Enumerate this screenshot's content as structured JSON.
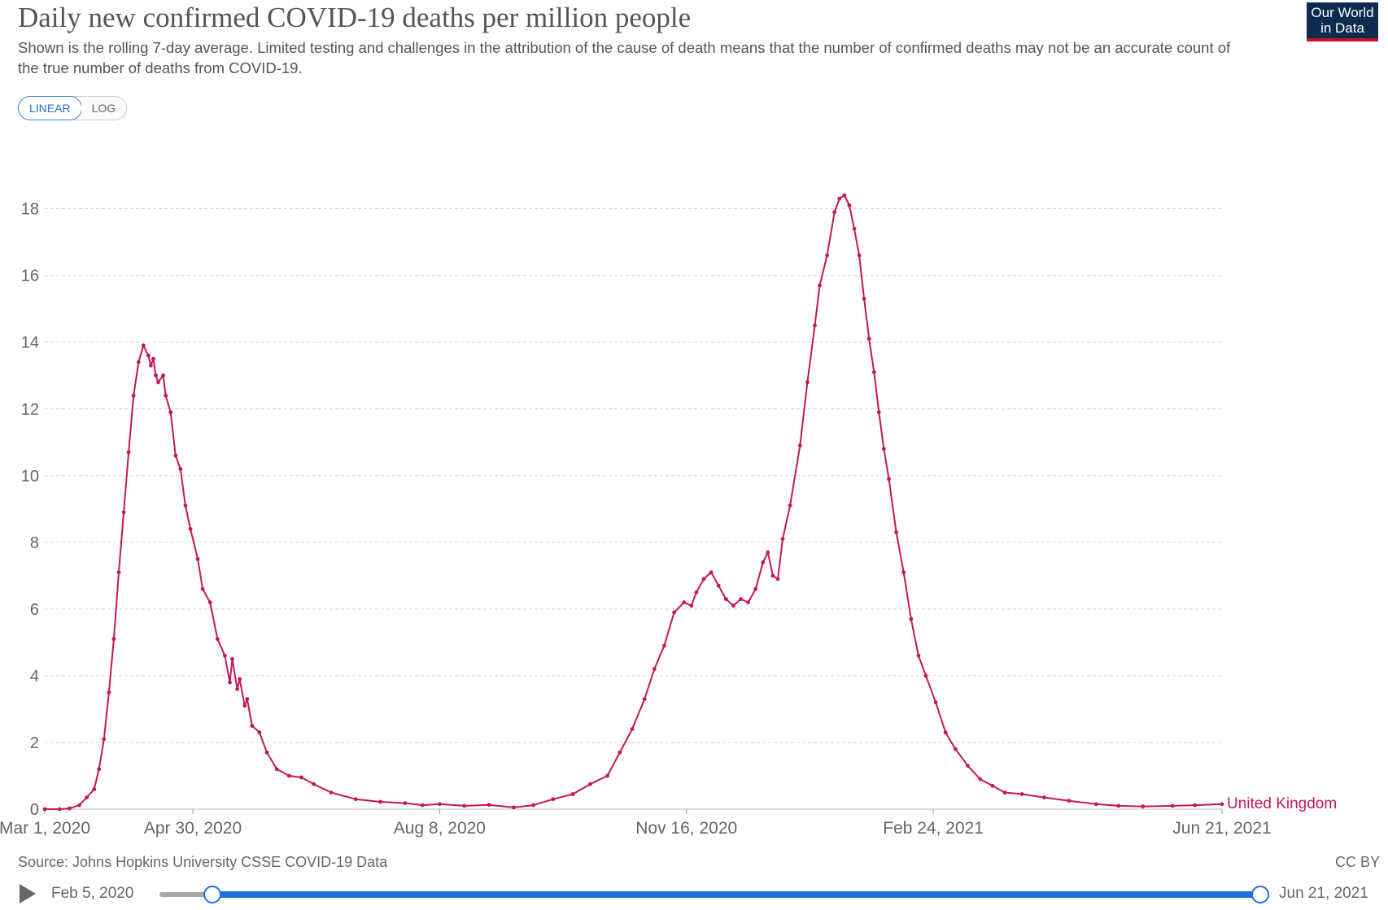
{
  "header": {
    "title": "Daily new confirmed COVID-19 deaths per million people",
    "subtitle": "Shown is the rolling 7-day average. Limited testing and challenges in the attribution of the cause of death means that the number of confirmed deaths may not be an accurate count of the true number of deaths from COVID-19."
  },
  "logo": {
    "line1": "Our World",
    "line2": "in Data"
  },
  "scale_toggle": {
    "linear": "LINEAR",
    "log": "LOG",
    "selected": "linear"
  },
  "chart_data": {
    "type": "line",
    "title": "Daily new confirmed COVID-19 deaths per million people",
    "xlabel": "",
    "ylabel": "",
    "x_range": [
      "2020-03-01",
      "2021-06-21"
    ],
    "ylim": [
      0,
      18
    ],
    "y_ticks": [
      0,
      2,
      4,
      6,
      8,
      10,
      12,
      14,
      16,
      18
    ],
    "x_ticks": [
      "2020-03-01",
      "2020-04-30",
      "2020-08-08",
      "2020-11-16",
      "2021-02-24",
      "2021-06-21"
    ],
    "x_tick_labels": [
      "Mar 1, 2020",
      "Apr 30, 2020",
      "Aug 8, 2020",
      "Nov 16, 2020",
      "Feb 24, 2021",
      "Jun 21, 2021"
    ],
    "grid": "horizontal dashed",
    "legend": "inline label at line end",
    "series": [
      {
        "name": "United Kingdom",
        "color": "#c2185b",
        "points": [
          [
            "2020-03-01",
            0
          ],
          [
            "2020-03-07",
            0
          ],
          [
            "2020-03-11",
            0.02
          ],
          [
            "2020-03-15",
            0.12
          ],
          [
            "2020-03-18",
            0.35
          ],
          [
            "2020-03-21",
            0.6
          ],
          [
            "2020-03-23",
            1.2
          ],
          [
            "2020-03-25",
            2.1
          ],
          [
            "2020-03-27",
            3.5
          ],
          [
            "2020-03-29",
            5.1
          ],
          [
            "2020-03-31",
            7.1
          ],
          [
            "2020-04-02",
            8.9
          ],
          [
            "2020-04-04",
            10.7
          ],
          [
            "2020-04-06",
            12.4
          ],
          [
            "2020-04-08",
            13.4
          ],
          [
            "2020-04-10",
            13.9
          ],
          [
            "2020-04-12",
            13.6
          ],
          [
            "2020-04-13",
            13.3
          ],
          [
            "2020-04-14",
            13.5
          ],
          [
            "2020-04-15",
            13.0
          ],
          [
            "2020-04-16",
            12.8
          ],
          [
            "2020-04-18",
            13.0
          ],
          [
            "2020-04-19",
            12.4
          ],
          [
            "2020-04-21",
            11.9
          ],
          [
            "2020-04-23",
            10.6
          ],
          [
            "2020-04-25",
            10.2
          ],
          [
            "2020-04-27",
            9.1
          ],
          [
            "2020-04-29",
            8.4
          ],
          [
            "2020-05-02",
            7.5
          ],
          [
            "2020-05-04",
            6.6
          ],
          [
            "2020-05-07",
            6.2
          ],
          [
            "2020-05-10",
            5.1
          ],
          [
            "2020-05-13",
            4.6
          ],
          [
            "2020-05-15",
            3.8
          ],
          [
            "2020-05-16",
            4.5
          ],
          [
            "2020-05-18",
            3.6
          ],
          [
            "2020-05-19",
            3.9
          ],
          [
            "2020-05-21",
            3.1
          ],
          [
            "2020-05-22",
            3.3
          ],
          [
            "2020-05-24",
            2.5
          ],
          [
            "2020-05-27",
            2.3
          ],
          [
            "2020-05-30",
            1.7
          ],
          [
            "2020-06-03",
            1.2
          ],
          [
            "2020-06-08",
            1.0
          ],
          [
            "2020-06-13",
            0.95
          ],
          [
            "2020-06-18",
            0.75
          ],
          [
            "2020-06-25",
            0.5
          ],
          [
            "2020-07-05",
            0.3
          ],
          [
            "2020-07-15",
            0.22
          ],
          [
            "2020-07-25",
            0.18
          ],
          [
            "2020-08-01",
            0.12
          ],
          [
            "2020-08-08",
            0.15
          ],
          [
            "2020-08-18",
            0.1
          ],
          [
            "2020-08-28",
            0.13
          ],
          [
            "2020-09-07",
            0.05
          ],
          [
            "2020-09-15",
            0.12
          ],
          [
            "2020-09-23",
            0.3
          ],
          [
            "2020-10-01",
            0.45
          ],
          [
            "2020-10-08",
            0.75
          ],
          [
            "2020-10-15",
            1.0
          ],
          [
            "2020-10-20",
            1.7
          ],
          [
            "2020-10-25",
            2.4
          ],
          [
            "2020-10-30",
            3.3
          ],
          [
            "2020-11-03",
            4.2
          ],
          [
            "2020-11-07",
            4.9
          ],
          [
            "2020-11-11",
            5.9
          ],
          [
            "2020-11-15",
            6.2
          ],
          [
            "2020-11-18",
            6.1
          ],
          [
            "2020-11-20",
            6.5
          ],
          [
            "2020-11-23",
            6.9
          ],
          [
            "2020-11-26",
            7.1
          ],
          [
            "2020-11-29",
            6.7
          ],
          [
            "2020-12-02",
            6.3
          ],
          [
            "2020-12-05",
            6.1
          ],
          [
            "2020-12-08",
            6.3
          ],
          [
            "2020-12-11",
            6.2
          ],
          [
            "2020-12-14",
            6.6
          ],
          [
            "2020-12-17",
            7.4
          ],
          [
            "2020-12-19",
            7.7
          ],
          [
            "2020-12-21",
            7.0
          ],
          [
            "2020-12-23",
            6.9
          ],
          [
            "2020-12-25",
            8.1
          ],
          [
            "2020-12-28",
            9.1
          ],
          [
            "2021-01-01",
            10.9
          ],
          [
            "2021-01-04",
            12.8
          ],
          [
            "2021-01-07",
            14.5
          ],
          [
            "2021-01-09",
            15.7
          ],
          [
            "2021-01-12",
            16.6
          ],
          [
            "2021-01-15",
            17.9
          ],
          [
            "2021-01-17",
            18.3
          ],
          [
            "2021-01-19",
            18.4
          ],
          [
            "2021-01-21",
            18.1
          ],
          [
            "2021-01-23",
            17.4
          ],
          [
            "2021-01-25",
            16.6
          ],
          [
            "2021-01-27",
            15.3
          ],
          [
            "2021-01-29",
            14.1
          ],
          [
            "2021-01-31",
            13.1
          ],
          [
            "2021-02-02",
            11.9
          ],
          [
            "2021-02-04",
            10.8
          ],
          [
            "2021-02-06",
            9.9
          ],
          [
            "2021-02-09",
            8.3
          ],
          [
            "2021-02-12",
            7.1
          ],
          [
            "2021-02-15",
            5.7
          ],
          [
            "2021-02-18",
            4.6
          ],
          [
            "2021-02-21",
            4.0
          ],
          [
            "2021-02-25",
            3.2
          ],
          [
            "2021-03-01",
            2.3
          ],
          [
            "2021-03-05",
            1.8
          ],
          [
            "2021-03-10",
            1.3
          ],
          [
            "2021-03-15",
            0.9
          ],
          [
            "2021-03-20",
            0.7
          ],
          [
            "2021-03-25",
            0.5
          ],
          [
            "2021-04-01",
            0.45
          ],
          [
            "2021-04-10",
            0.35
          ],
          [
            "2021-04-20",
            0.25
          ],
          [
            "2021-05-01",
            0.15
          ],
          [
            "2021-05-10",
            0.1
          ],
          [
            "2021-05-20",
            0.08
          ],
          [
            "2021-06-01",
            0.1
          ],
          [
            "2021-06-10",
            0.12
          ],
          [
            "2021-06-21",
            0.15
          ]
        ]
      }
    ]
  },
  "footer": {
    "source": "Source: Johns Hopkins University CSSE COVID-19 Data",
    "license": "CC BY"
  },
  "timeline": {
    "start_label": "Feb 5, 2020",
    "end_label": "Jun 21, 2021",
    "range_start": "2020-03-01",
    "range_end": "2021-06-21"
  }
}
